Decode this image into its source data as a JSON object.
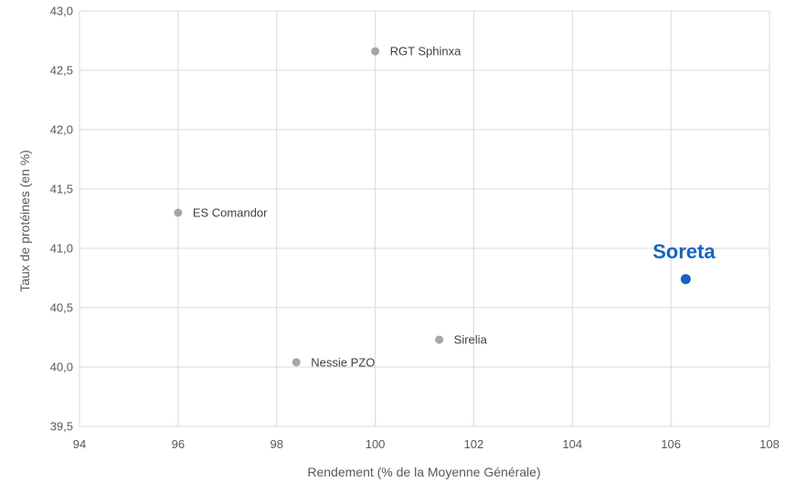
{
  "chart_data": {
    "type": "scatter",
    "xlabel": "Rendement (% de la Moyenne Générale)",
    "ylabel": "Taux de protéines (en %)",
    "xlim": [
      94,
      108
    ],
    "ylim": [
      39.5,
      43.0
    ],
    "x_ticks": [
      "94",
      "96",
      "98",
      "100",
      "102",
      "104",
      "106",
      "108"
    ],
    "y_ticks": [
      "39,5",
      "40,0",
      "40,5",
      "41,0",
      "41,5",
      "42,0",
      "42,5",
      "43,0"
    ],
    "grid": "vertical and horizontal",
    "colors": {
      "default_point": "#a6a6a6",
      "highlight": "#1565c0",
      "grid": "#d9d9d9"
    },
    "points": [
      {
        "label": "RGT Sphinxa",
        "x": 100.0,
        "y": 42.66,
        "highlight": false
      },
      {
        "label": "ES Comandor",
        "x": 96.0,
        "y": 41.3,
        "highlight": false
      },
      {
        "label": "Soreta",
        "x": 106.3,
        "y": 40.74,
        "highlight": true
      },
      {
        "label": "Sirelia",
        "x": 101.3,
        "y": 40.23,
        "highlight": false
      },
      {
        "label": "Nessie PZO",
        "x": 98.4,
        "y": 40.04,
        "highlight": false
      }
    ]
  }
}
